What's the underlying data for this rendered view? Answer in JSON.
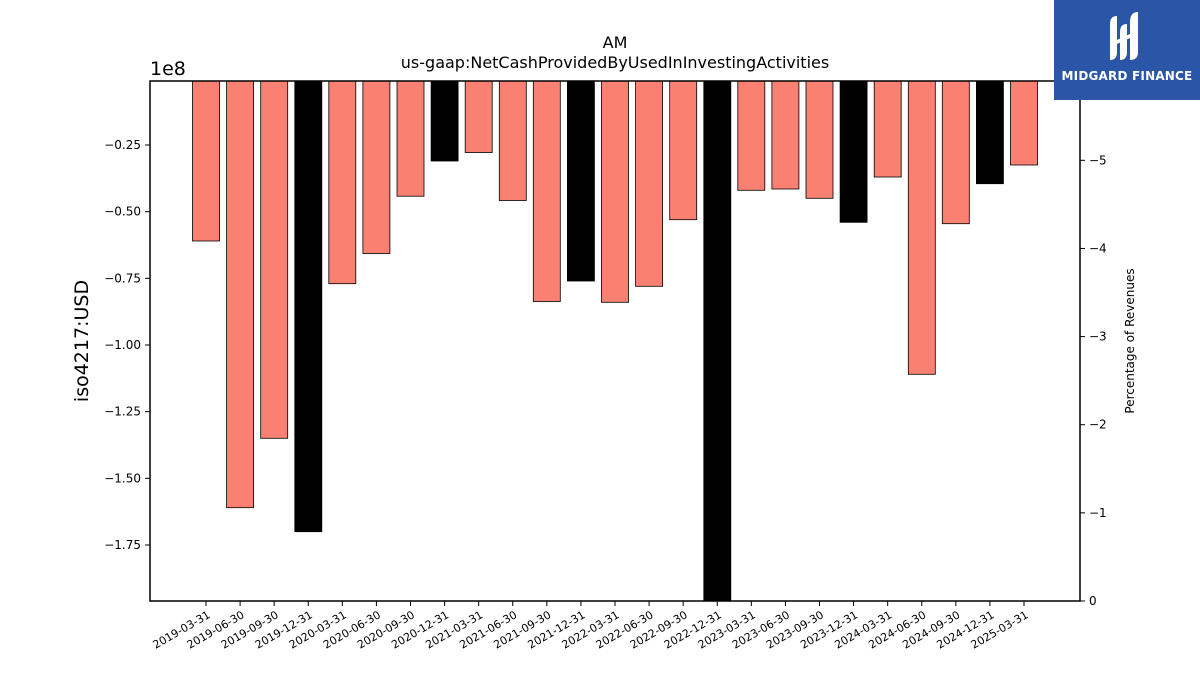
{
  "chart_data": {
    "type": "bar",
    "title": "AM",
    "subtitle": "us-gaap:NetCashProvidedByUsedInInvestingActivities",
    "ylabel": "iso4217:USD",
    "ylabel_right": "Percentage of Revenues",
    "y_offset_label": "1e8",
    "ylim": [
      -196000000,
      -1000000
    ],
    "y_right_lim": [
      0,
      -5.9
    ],
    "y_ticks": [
      -25000000,
      -50000000,
      -75000000,
      -100000000,
      -125000000,
      -150000000,
      -175000000
    ],
    "y_tick_labels": [
      "−0.25",
      "−0.50",
      "−0.75",
      "−1.00",
      "−1.25",
      "−1.50",
      "−1.75"
    ],
    "y_right_ticks": [
      0,
      -1,
      -2,
      -3,
      -4,
      -5
    ],
    "y_right_tick_labels": [
      "0",
      "−1",
      "−2",
      "−3",
      "−4",
      "−5"
    ],
    "categories": [
      "2019-03-31",
      "2019-06-30",
      "2019-09-30",
      "2019-12-31",
      "2020-03-31",
      "2020-06-30",
      "2020-09-30",
      "2020-12-31",
      "2021-03-31",
      "2021-06-30",
      "2021-09-30",
      "2021-12-31",
      "2022-03-31",
      "2022-06-30",
      "2022-09-30",
      "2022-12-31",
      "2023-03-31",
      "2023-06-30",
      "2023-09-30",
      "2023-12-31",
      "2024-03-31",
      "2024-06-30",
      "2024-09-30",
      "2024-12-31",
      "2025-03-31"
    ],
    "values": [
      -61000000,
      -161000000,
      -135000000,
      -170000000,
      -77000000,
      -65700000,
      -44200000,
      -31000000,
      -27800000,
      -45800000,
      -83700000,
      -76000000,
      -84000000,
      -78000000,
      -53000000,
      -196000000,
      -42000000,
      -41500000,
      -45000000,
      -54000000,
      -37000000,
      -111000000,
      -54500000,
      -39500000,
      -32500000
    ],
    "bar_colors": [
      "#fa8072",
      "#fa8072",
      "#fa8072",
      "#000000",
      "#fa8072",
      "#fa8072",
      "#fa8072",
      "#000000",
      "#fa8072",
      "#fa8072",
      "#fa8072",
      "#000000",
      "#fa8072",
      "#fa8072",
      "#fa8072",
      "#000000",
      "#fa8072",
      "#fa8072",
      "#fa8072",
      "#000000",
      "#fa8072",
      "#fa8072",
      "#fa8072",
      "#000000",
      "#fa8072"
    ],
    "grid": false,
    "legend": "none"
  },
  "logo": {
    "text": "MIDGARD FINANCE",
    "background": "#2b56a8"
  }
}
